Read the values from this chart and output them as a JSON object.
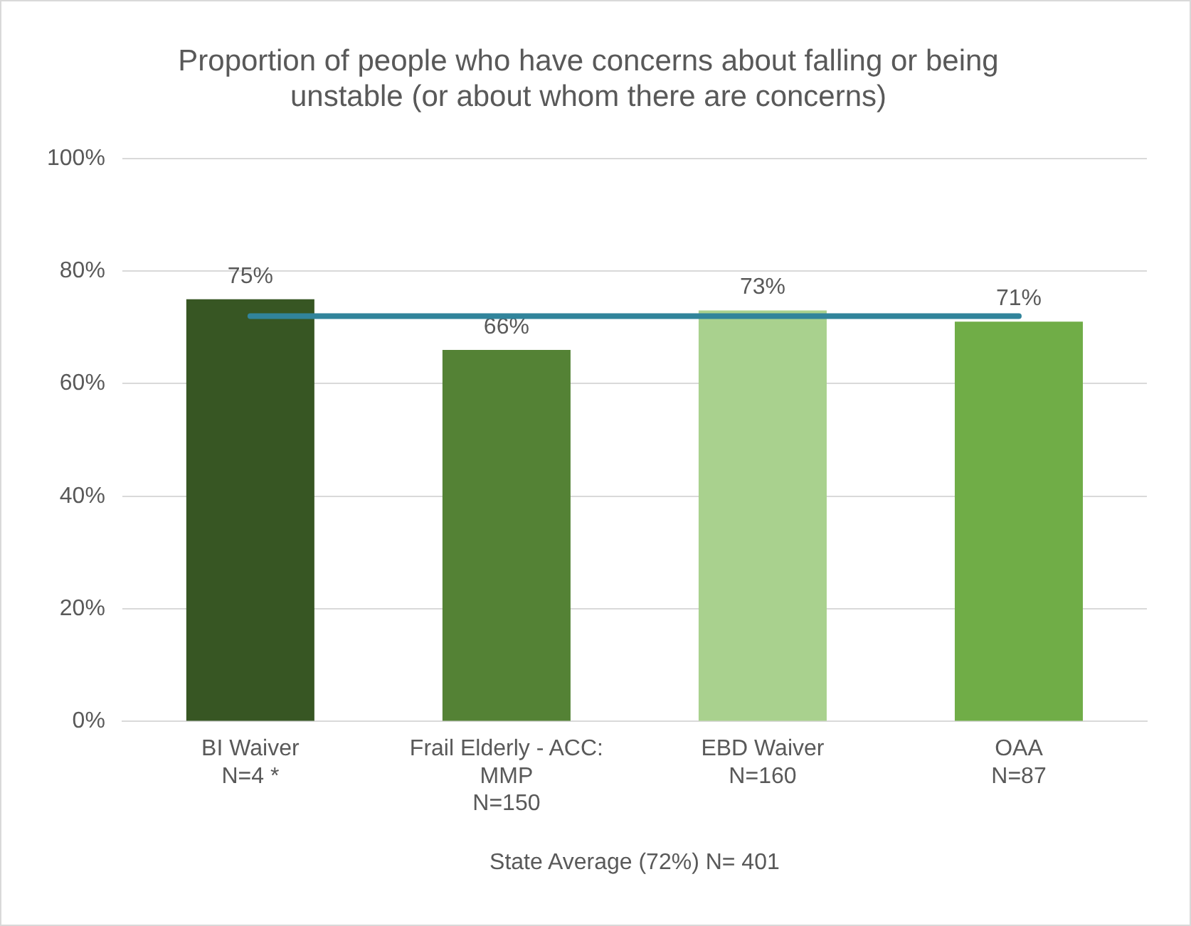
{
  "chart_data": {
    "type": "bar",
    "title": "Proportion of people who have concerns about falling or being\nunstable (or about whom there are concerns)",
    "categories": [
      "BI Waiver\nN=4 *",
      "Frail Elderly - ACC:\nMMP\nN=150",
      "EBD Waiver\nN=160",
      "OAA\nN=87"
    ],
    "values": [
      75,
      66,
      73,
      71
    ],
    "colors": [
      "#375623",
      "#548235",
      "#a9d18e",
      "#70ad47"
    ],
    "value_labels": [
      "75%",
      "66%",
      "73%",
      "71%"
    ],
    "ylim": [
      0,
      100
    ],
    "yticks": [
      {
        "value": 0,
        "label": "0%"
      },
      {
        "value": 20,
        "label": "20%"
      },
      {
        "value": 40,
        "label": "40%"
      },
      {
        "value": 60,
        "label": "60%"
      },
      {
        "value": 80,
        "label": "80%"
      },
      {
        "value": 100,
        "label": "100%"
      }
    ],
    "grid": "y",
    "legend": false,
    "ref_lines": [
      {
        "axis": "y",
        "value": 72,
        "color": "#31849b"
      }
    ],
    "xlabel": "State Average (72%) N= 401"
  }
}
